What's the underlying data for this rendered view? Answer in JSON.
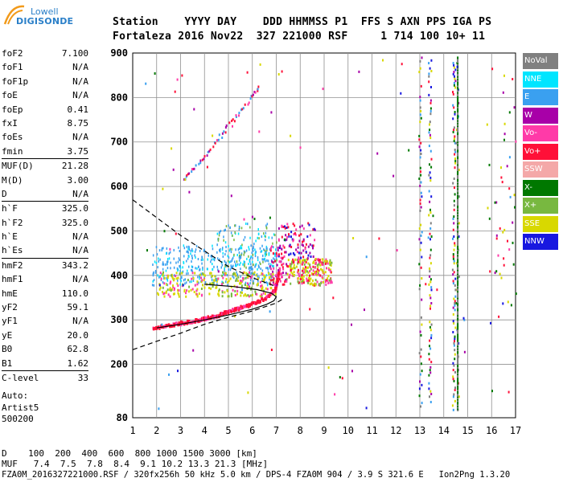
{
  "logo": {
    "top": "Lowell",
    "main": "DIGISONDE"
  },
  "header": {
    "line1": "Station    YYYY DAY    DDD HHMMSS P1  FFS S AXN PPS IGA PS",
    "line2": "Fortaleza 2016 Nov22  327 221000 RSF     1 714 100 10+ 11"
  },
  "params": [
    {
      "label": "foF2",
      "value": "7.100"
    },
    {
      "label": "foF1",
      "value": "N/A"
    },
    {
      "label": "foF1p",
      "value": "N/A"
    },
    {
      "label": "foE",
      "value": "N/A"
    },
    {
      "label": "foEp",
      "value": "0.41"
    },
    {
      "label": "fxI",
      "value": "8.75"
    },
    {
      "label": "foEs",
      "value": "N/A"
    },
    {
      "label": "fmin",
      "value": "3.75"
    },
    {
      "label": "MUF(D)",
      "value": "21.28",
      "sep": true
    },
    {
      "label": "M(D)",
      "value": "3.00"
    },
    {
      "label": "D",
      "value": "N/A"
    },
    {
      "label": "h`F",
      "value": "325.0",
      "sep": true
    },
    {
      "label": "h`F2",
      "value": "325.0"
    },
    {
      "label": "h`E",
      "value": "N/A"
    },
    {
      "label": "h`Es",
      "value": "N/A"
    },
    {
      "label": "hmF2",
      "value": "343.2",
      "sep": true
    },
    {
      "label": "hmF1",
      "value": "N/A"
    },
    {
      "label": "hmE",
      "value": "110.0"
    },
    {
      "label": "yF2",
      "value": "59.1"
    },
    {
      "label": "yF1",
      "value": "N/A"
    },
    {
      "label": "yE",
      "value": "20.0"
    },
    {
      "label": "B0",
      "value": "62.8"
    },
    {
      "label": "B1",
      "value": "1.62"
    },
    {
      "label": "C-level",
      "value": "33",
      "sep": true
    }
  ],
  "auto": {
    "line1": "Auto:",
    "line2": "Artist5",
    "line3": "500200"
  },
  "legend": [
    {
      "label": "NoVal",
      "color": "#808080"
    },
    {
      "label": "NNE",
      "color": "#00e5ff"
    },
    {
      "label": "E",
      "color": "#3aa0f0"
    },
    {
      "label": "W",
      "color": "#a800a8"
    },
    {
      "label": "Vo-",
      "color": "#ff3aa8"
    },
    {
      "label": "Vo+",
      "color": "#ff1038"
    },
    {
      "label": "SSW",
      "color": "#f4a8a8"
    },
    {
      "label": "X-",
      "color": "#007800"
    },
    {
      "label": "X+",
      "color": "#78b840"
    },
    {
      "label": "SSE",
      "color": "#d8d800"
    },
    {
      "label": "NNW",
      "color": "#1818e0"
    }
  ],
  "footer": {
    "line1": "D    100  200  400  600  800 1000 1500 3000 [km]",
    "line2": "MUF   7.4  7.5  7.8  8.4  9.1 10.2 13.3 21.3 [MHz]",
    "line3": "FZA0M_2016327221000.RSF / 320fx256h 50 kHz 5.0 km / DPS-4 FZA0M 904 / 3.9 S 321.6 E   Ion2Png 1.3.20"
  },
  "chart_data": {
    "type": "scatter",
    "xlim": [
      1,
      17
    ],
    "ylim": [
      80,
      900
    ],
    "xticks": [
      1,
      2,
      3,
      4,
      5,
      6,
      7,
      8,
      9,
      10,
      11,
      12,
      13,
      14,
      15,
      16,
      17
    ],
    "yticks": [
      80,
      200,
      300,
      400,
      500,
      600,
      700,
      800,
      900
    ],
    "grid": true,
    "curves": {
      "profile_solid": [
        [
          2.0,
          282
        ],
        [
          3.0,
          290
        ],
        [
          4.0,
          300
        ],
        [
          5.0,
          311
        ],
        [
          6.0,
          324
        ],
        [
          6.6,
          335
        ],
        [
          6.9,
          343
        ],
        [
          7.0,
          352
        ],
        [
          6.8,
          360
        ],
        [
          6.2,
          368
        ],
        [
          5.2,
          375
        ],
        [
          4.0,
          380
        ]
      ],
      "profile_dashed_lower": [
        [
          1.0,
          233
        ],
        [
          2.0,
          252
        ],
        [
          3.0,
          270
        ],
        [
          4.0,
          290
        ],
        [
          5.0,
          306
        ],
        [
          6.0,
          320
        ],
        [
          7.0,
          338
        ],
        [
          7.3,
          348
        ]
      ],
      "profile_dashed_upper": [
        [
          1.0,
          570
        ],
        [
          2.0,
          530
        ],
        [
          3.0,
          490
        ],
        [
          4.0,
          455
        ],
        [
          5.0,
          420
        ],
        [
          6.0,
          395
        ],
        [
          7.0,
          375
        ]
      ],
      "o_trace": [
        [
          1.8,
          285
        ],
        [
          2.5,
          290
        ],
        [
          3.0,
          296
        ],
        [
          3.5,
          300
        ],
        [
          4.0,
          306
        ],
        [
          4.5,
          313
        ],
        [
          5.0,
          322
        ],
        [
          5.5,
          331
        ],
        [
          6.0,
          340
        ],
        [
          6.5,
          352
        ],
        [
          6.9,
          368
        ],
        [
          7.0,
          390
        ],
        [
          7.1,
          420
        ]
      ],
      "multihop_trace": [
        [
          3.1,
          618
        ],
        [
          3.5,
          640
        ],
        [
          4.0,
          672
        ],
        [
          4.5,
          707
        ],
        [
          5.0,
          742
        ],
        [
          5.5,
          775
        ],
        [
          6.0,
          808
        ],
        [
          6.3,
          830
        ]
      ]
    }
  }
}
